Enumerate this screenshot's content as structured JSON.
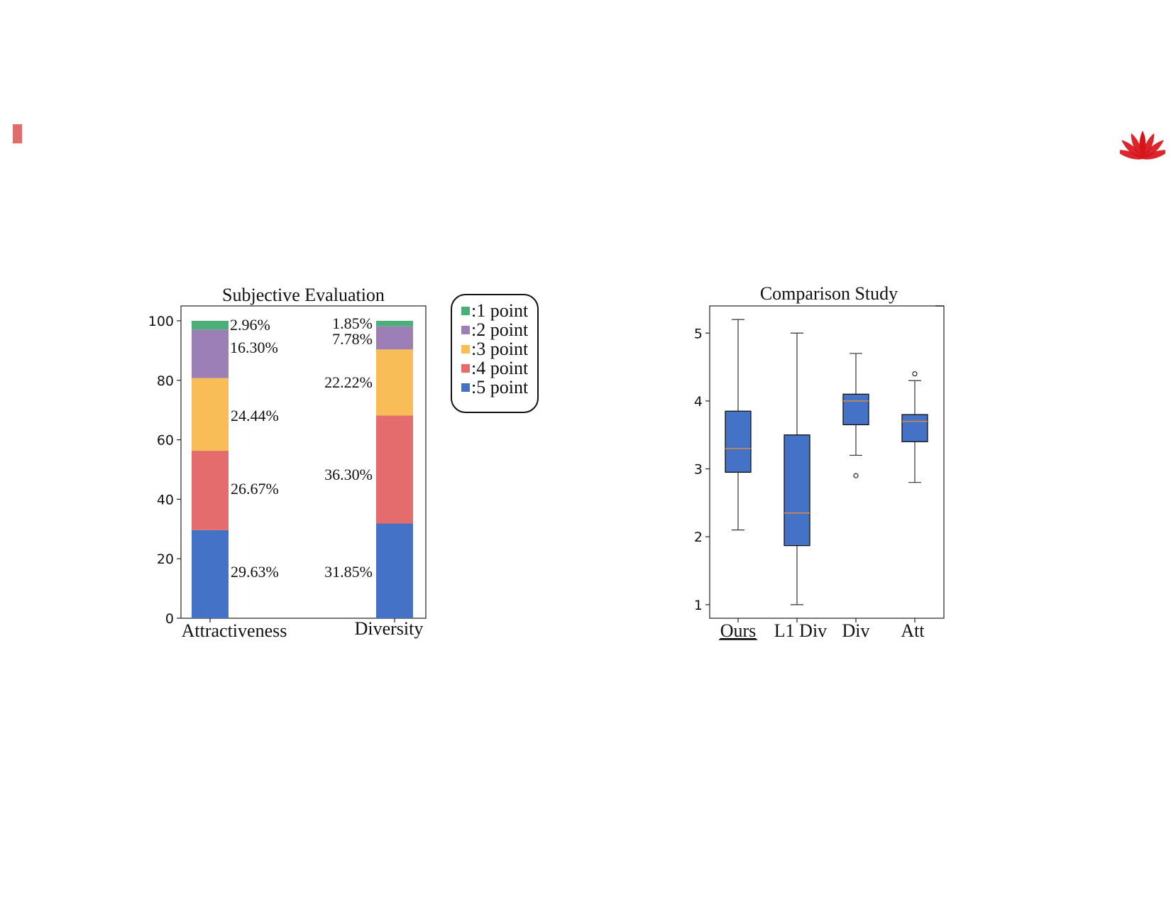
{
  "slide": {
    "accent_color": "#e06c6c",
    "logo_icon": "huawei-logo-icon",
    "logo_color": "#d7141a"
  },
  "chart_data": [
    {
      "type": "bar",
      "stacked": true,
      "title": "Subjective Evaluation",
      "categories": [
        "Attractiveness",
        "Diversity"
      ],
      "series": [
        {
          "name": ":5 point",
          "color": "#4472c4",
          "values": [
            29.63,
            31.85
          ],
          "labels": [
            "29.63%",
            "31.85%"
          ]
        },
        {
          "name": ":4 point",
          "color": "#e46c6c",
          "values": [
            26.67,
            36.3
          ],
          "labels": [
            "26.67%",
            "36.30%"
          ]
        },
        {
          "name": ":3 point",
          "color": "#f9bd57",
          "values": [
            24.44,
            22.22
          ],
          "labels": [
            "24.44%",
            "22.22%"
          ]
        },
        {
          "name": ":2 point",
          "color": "#9b7fb5",
          "values": [
            16.3,
            7.78
          ],
          "labels": [
            "16.30%",
            "7.78%"
          ]
        },
        {
          "name": ":1 point",
          "color": "#4caf7a",
          "values": [
            2.96,
            1.85
          ],
          "labels": [
            "2.96%",
            "1.85%"
          ]
        }
      ],
      "legend_order": [
        ":1 point",
        ":2 point",
        ":3 point",
        ":4 point",
        ":5 point"
      ],
      "legend_placement": "outside-right",
      "yticks": [
        0,
        20,
        40,
        60,
        80,
        100
      ],
      "ylim": [
        0,
        105
      ],
      "xlabel": "",
      "ylabel": "",
      "grid": false
    },
    {
      "type": "box",
      "title": "Comparison Study",
      "categories": [
        "Ours",
        "L1 Div",
        "Div",
        "Att"
      ],
      "underlined_category": "Ours",
      "box_color": "#4472c4",
      "median_color": "#d98b4a",
      "boxes": [
        {
          "min": 2.1,
          "q1": 2.95,
          "median": 3.3,
          "q3": 3.85,
          "max": 5.2,
          "outliers": []
        },
        {
          "min": 1.0,
          "q1": 1.87,
          "median": 2.35,
          "q3": 3.5,
          "max": 5.0,
          "outliers": []
        },
        {
          "min": 3.2,
          "q1": 3.65,
          "median": 4.0,
          "q3": 4.1,
          "max": 4.7,
          "outliers": [
            2.9
          ]
        },
        {
          "min": 2.8,
          "q1": 3.4,
          "median": 3.7,
          "q3": 3.8,
          "max": 4.3,
          "outliers": [
            4.4
          ]
        }
      ],
      "yticks": [
        1,
        2,
        3,
        4,
        5
      ],
      "ylim": [
        0.8,
        5.4
      ],
      "xlabel": "",
      "ylabel": "",
      "grid": false
    }
  ]
}
